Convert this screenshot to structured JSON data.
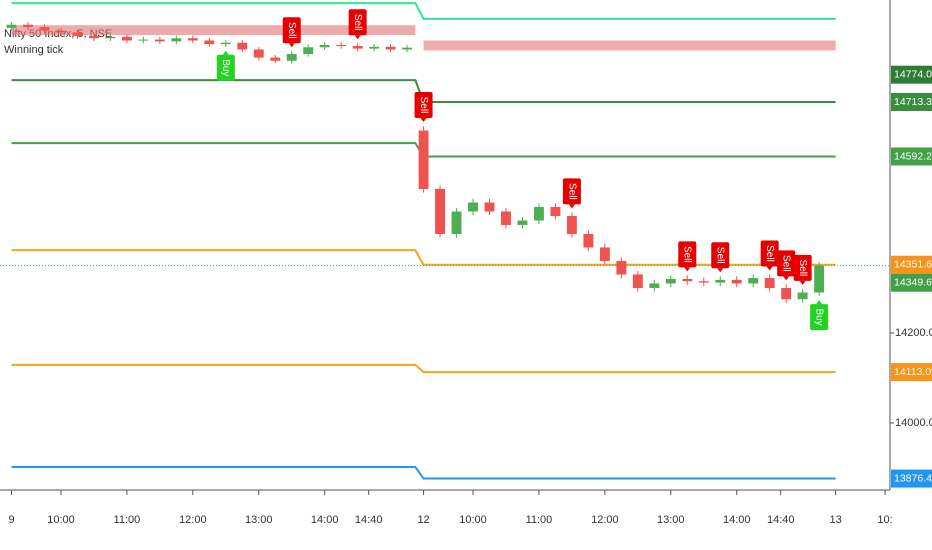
{
  "chart_data": {
    "type": "candlestick",
    "title": "Nifty 50 Index, 5, NSE",
    "subtitle": "Winning tick",
    "up_color": "#4caf50",
    "down_color": "#ef5350",
    "x": [
      0,
      1,
      2,
      3,
      4,
      5,
      6,
      7,
      8,
      9,
      10,
      11,
      12,
      13,
      14,
      15,
      16,
      17,
      18,
      19,
      20,
      21,
      22,
      23,
      24,
      25,
      26,
      27,
      28,
      29,
      30,
      31,
      32,
      33,
      34,
      35,
      36,
      37,
      38,
      39,
      40,
      41,
      42,
      43,
      44,
      45,
      46,
      47,
      48,
      49
    ],
    "open": [
      14878,
      14885,
      14880,
      14872,
      14868,
      14860,
      14855,
      14858,
      14850,
      14852,
      14848,
      14855,
      14850,
      14842,
      14845,
      14830,
      14812,
      14805,
      14820,
      14835,
      14840,
      14838,
      14832,
      14836,
      14830,
      14650,
      14520,
      14420,
      14470,
      14490,
      14470,
      14440,
      14450,
      14480,
      14460,
      14420,
      14390,
      14360,
      14330,
      14300,
      14310,
      14320,
      14315,
      14312,
      14318,
      14310,
      14322,
      14300,
      14275,
      14290
    ],
    "high": [
      14891,
      14891,
      14886,
      14878,
      14874,
      14866,
      14864,
      14864,
      14858,
      14858,
      14861,
      14861,
      14856,
      14851,
      14851,
      14836,
      14818,
      14826,
      14841,
      14846,
      14846,
      14844,
      14842,
      14842,
      14840,
      14660,
      14528,
      14478,
      14498,
      14498,
      14478,
      14458,
      14488,
      14488,
      14468,
      14428,
      14398,
      14368,
      14338,
      14318,
      14328,
      14328,
      14323,
      14326,
      14326,
      14330,
      14330,
      14308,
      14298,
      14357.6
    ],
    "low": [
      14872,
      14874,
      14866,
      14862,
      14854,
      14849,
      14849,
      14844,
      14844,
      14842,
      14842,
      14844,
      14836,
      14836,
      14824,
      14806,
      14799,
      14799,
      14814,
      14829,
      14832,
      14826,
      14826,
      14824,
      14824,
      14512,
      14412,
      14412,
      14462,
      14462,
      14432,
      14432,
      14442,
      14452,
      14412,
      14382,
      14352,
      14322,
      14292,
      14292,
      14302,
      14307,
      14304,
      14304,
      14302,
      14302,
      14292,
      14267,
      14267,
      14282
    ],
    "close": [
      14885,
      14880,
      14872,
      14868,
      14860,
      14855,
      14858,
      14850,
      14852,
      14848,
      14855,
      14850,
      14842,
      14845,
      14830,
      14812,
      14805,
      14820,
      14835,
      14840,
      14838,
      14832,
      14836,
      14830,
      14834,
      14520,
      14420,
      14470,
      14490,
      14470,
      14440,
      14450,
      14480,
      14460,
      14420,
      14390,
      14360,
      14330,
      14300,
      14310,
      14320,
      14315,
      14312,
      14318,
      14310,
      14322,
      14300,
      14275,
      14290,
      14349.6
    ],
    "xlim": [
      -0.7,
      53.3
    ],
    "ylim": [
      13851,
      14940
    ],
    "xticks": [
      {
        "value": 0,
        "label": "9"
      },
      {
        "value": 3,
        "label": "10:00"
      },
      {
        "value": 7,
        "label": "11:00"
      },
      {
        "value": 11,
        "label": "12:00"
      },
      {
        "value": 15,
        "label": "13:00"
      },
      {
        "value": 19,
        "label": "14:00"
      },
      {
        "value": 21.67,
        "label": "14:40"
      },
      {
        "value": 25,
        "label": "12"
      },
      {
        "value": 28,
        "label": "10:00"
      },
      {
        "value": 32,
        "label": "11:00"
      },
      {
        "value": 36,
        "label": "12:00"
      },
      {
        "value": 40,
        "label": "13:00"
      },
      {
        "value": 44,
        "label": "14:00"
      },
      {
        "value": 46.67,
        "label": "14:40"
      },
      {
        "value": 50,
        "label": "13"
      },
      {
        "value": 53,
        "label": "10:"
      }
    ],
    "yticks": [
      {
        "value": 14000,
        "label": "14000.00"
      },
      {
        "value": 14200,
        "label": "14200.00"
      }
    ],
    "levels": [
      {
        "prev": 14933,
        "value": 14898,
        "color": "#2ee89a"
      },
      {
        "prev": 14762,
        "value": 14713.3,
        "color": "#388e3c"
      },
      {
        "prev": 14622,
        "value": 14592.25,
        "color": "#43a047"
      },
      {
        "prev": 14384,
        "value": 14351.65,
        "color": "#f7a21b"
      },
      {
        "prev": 14129,
        "value": 14113.05,
        "color": "#f7a21b"
      },
      {
        "prev": 13902,
        "value": 13876.45,
        "color": "#2196f3"
      }
    ],
    "zones": [
      {
        "prev": [
          14862,
          14884
        ],
        "value": [
          14828,
          14850
        ],
        "color": "#e57373"
      }
    ],
    "price_labels": [
      {
        "value": 14774,
        "label": "14774.00",
        "color": "#2e7d32"
      },
      {
        "value": 14713.3,
        "label": "14713.30",
        "color": "#388e3c"
      },
      {
        "value": 14592.25,
        "label": "14592.25",
        "color": "#43a047"
      },
      {
        "value": 14351.65,
        "label": "14351.65",
        "color": "#f7931a"
      },
      {
        "value": 14349.6,
        "label": "14349.60",
        "color": "#43a047"
      },
      {
        "value": 14113.05,
        "label": "14113.05",
        "color": "#f7931a"
      },
      {
        "value": 13876.45,
        "label": "13876.45",
        "color": "#2196f3"
      }
    ],
    "signals": [
      {
        "label": "Buy",
        "x": 13
      },
      {
        "label": "Sell",
        "x": 17
      },
      {
        "label": "Sell",
        "x": 21
      },
      {
        "label": "Sell",
        "x": 25
      },
      {
        "label": "Sell",
        "x": 34
      },
      {
        "label": "Sell",
        "x": 41
      },
      {
        "label": "Sell",
        "x": 43
      },
      {
        "label": "Sell",
        "x": 46
      },
      {
        "label": "Sell",
        "x": 47
      },
      {
        "label": "Sell",
        "x": 48
      },
      {
        "label": "Buy",
        "x": 49
      }
    ]
  }
}
